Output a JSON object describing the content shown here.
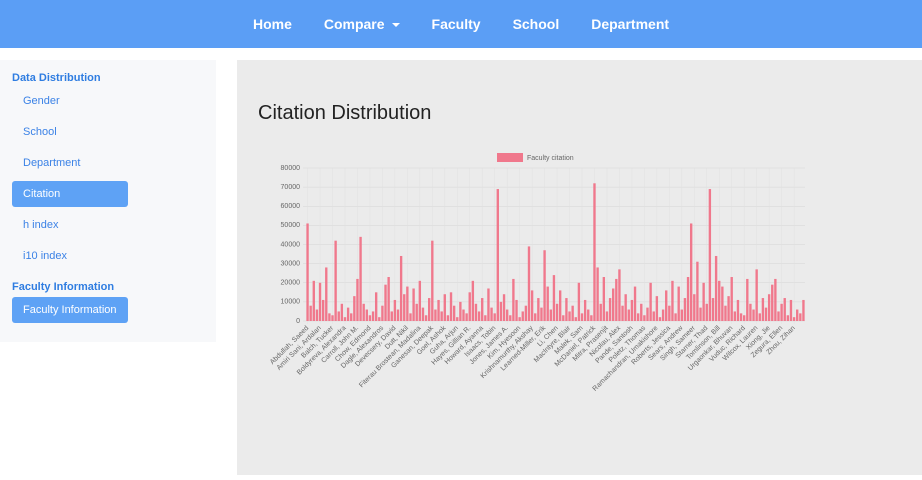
{
  "nav": {
    "items": [
      "Home",
      "Compare",
      "Faculty",
      "School",
      "Department"
    ]
  },
  "sidebar": {
    "sections": [
      {
        "title": "Data Distribution",
        "items": [
          "Gender",
          "School",
          "Department",
          "Citation",
          "h index",
          "i10 index"
        ],
        "active": 3
      },
      {
        "title": "Faculty Information",
        "items": [
          "Faculty Information"
        ],
        "active": 0
      }
    ]
  },
  "content": {
    "title": "Citation Distribution"
  },
  "chart_data": {
    "type": "bar",
    "categories": [
      "Abdullah, Saeed",
      null,
      null,
      null,
      "Amiri Sani, Ardalan",
      null,
      null,
      null,
      "Balch, Tucker",
      null,
      null,
      null,
      "Boldyreva, Alexandra",
      null,
      null,
      null,
      "Carroll, John M.",
      null,
      null,
      null,
      "Chow, Edmond",
      null,
      null,
      null,
      "Dagle, Alexandros",
      null,
      null,
      null,
      "Devecsery, David",
      null,
      null,
      null,
      "Dutt, Nikil",
      null,
      null,
      null,
      "Fiterau Brostean, Madalina",
      null,
      null,
      null,
      "Ganesan, Deepak",
      null,
      null,
      null,
      "Goel, Ashok",
      null,
      null,
      null,
      "Guha, Arjun",
      null,
      null,
      null,
      "Hayes, Gillian R.",
      null,
      null,
      null,
      "Howard, Ayanna",
      null,
      null,
      null,
      "Isaacs, Tobin",
      null,
      null,
      null,
      "Jones, James A.",
      null,
      null,
      null,
      "Kim, Hyesoon",
      null,
      null,
      null,
      "Krishnamurthy, Akshay",
      null,
      null,
      null,
      "Learned-Miller, Erik",
      null,
      null,
      null,
      "Li, Chen",
      null,
      null,
      null,
      "MacIntyre, Blair",
      null,
      null,
      null,
      "Malek, Sam",
      null,
      null,
      null,
      "McDaniel, Patrick",
      null,
      null,
      null,
      "Mitra, Prasenjit",
      null,
      null,
      null,
      "Nicolau, Alex",
      null,
      null,
      null,
      "Pande, Santosh",
      null,
      null,
      null,
      "Poletz, Thomas",
      null,
      null,
      null,
      "Ramachandran, Umakishore",
      null,
      null,
      null,
      "Roberts, Jessica",
      null,
      null,
      null,
      "Sears, Andrew",
      null,
      null,
      null,
      "Singh, Sameer",
      null,
      null,
      null,
      "Starner, Thad",
      null,
      null,
      null,
      "Tomlinson, Bill",
      null,
      null,
      null,
      "Urgaonkar, Bhuvan",
      null,
      null,
      null,
      "Vuduc, Richard",
      null,
      null,
      null,
      "Wilcox, Lauren",
      null,
      null,
      null,
      "Xiong, Jie",
      null,
      null,
      null,
      "Zegura, Ellen",
      null,
      null,
      null,
      "Zhou, Zihan",
      null,
      null,
      null
    ],
    "series": [
      {
        "name": "Faculty citation",
        "color": "#f0788c",
        "values": [
          51000,
          8000,
          21000,
          6000,
          20000,
          11000,
          28000,
          4000,
          3000,
          42000,
          5000,
          9000,
          2000,
          7000,
          4000,
          13000,
          22000,
          44000,
          9000,
          6000,
          3000,
          5000,
          15000,
          2000,
          8000,
          19000,
          23000,
          5000,
          11000,
          6000,
          34000,
          14000,
          18000,
          4000,
          17000,
          9000,
          21000,
          7000,
          3000,
          12000,
          42000,
          6000,
          11000,
          5000,
          14000,
          3000,
          15000,
          8000,
          2000,
          10000,
          6000,
          4000,
          15000,
          21000,
          9000,
          5000,
          12000,
          3000,
          17000,
          7000,
          4000,
          69000,
          10000,
          14000,
          6000,
          3000,
          22000,
          11000,
          2000,
          5000,
          8000,
          39000,
          16000,
          4000,
          12000,
          7000,
          37000,
          18000,
          6000,
          24000,
          9000,
          16000,
          3000,
          12000,
          5000,
          8000,
          2000,
          20000,
          4000,
          11000,
          6000,
          3000,
          72000,
          28000,
          9000,
          23000,
          5000,
          12000,
          17000,
          22000,
          27000,
          8000,
          14000,
          6000,
          11000,
          18000,
          4000,
          9000,
          3000,
          7000,
          20000,
          5000,
          13000,
          2000,
          6000,
          16000,
          8000,
          21000,
          4000,
          18000,
          6000,
          12000,
          23000,
          51000,
          14000,
          31000,
          7000,
          20000,
          9000,
          69000,
          12000,
          34000,
          21000,
          18000,
          8000,
          13000,
          23000,
          5000,
          11000,
          4000,
          3000,
          22000,
          9000,
          6000,
          27000,
          4000,
          12000,
          7000,
          14000,
          19000,
          22000,
          5000,
          9000,
          12000,
          3000,
          11000,
          2000,
          6000,
          4000,
          11000
        ]
      }
    ],
    "ylim": [
      0,
      80000
    ],
    "yticks": [
      0,
      10000,
      20000,
      30000,
      40000,
      50000,
      60000,
      70000,
      80000
    ],
    "grid": true,
    "legend": "top"
  }
}
